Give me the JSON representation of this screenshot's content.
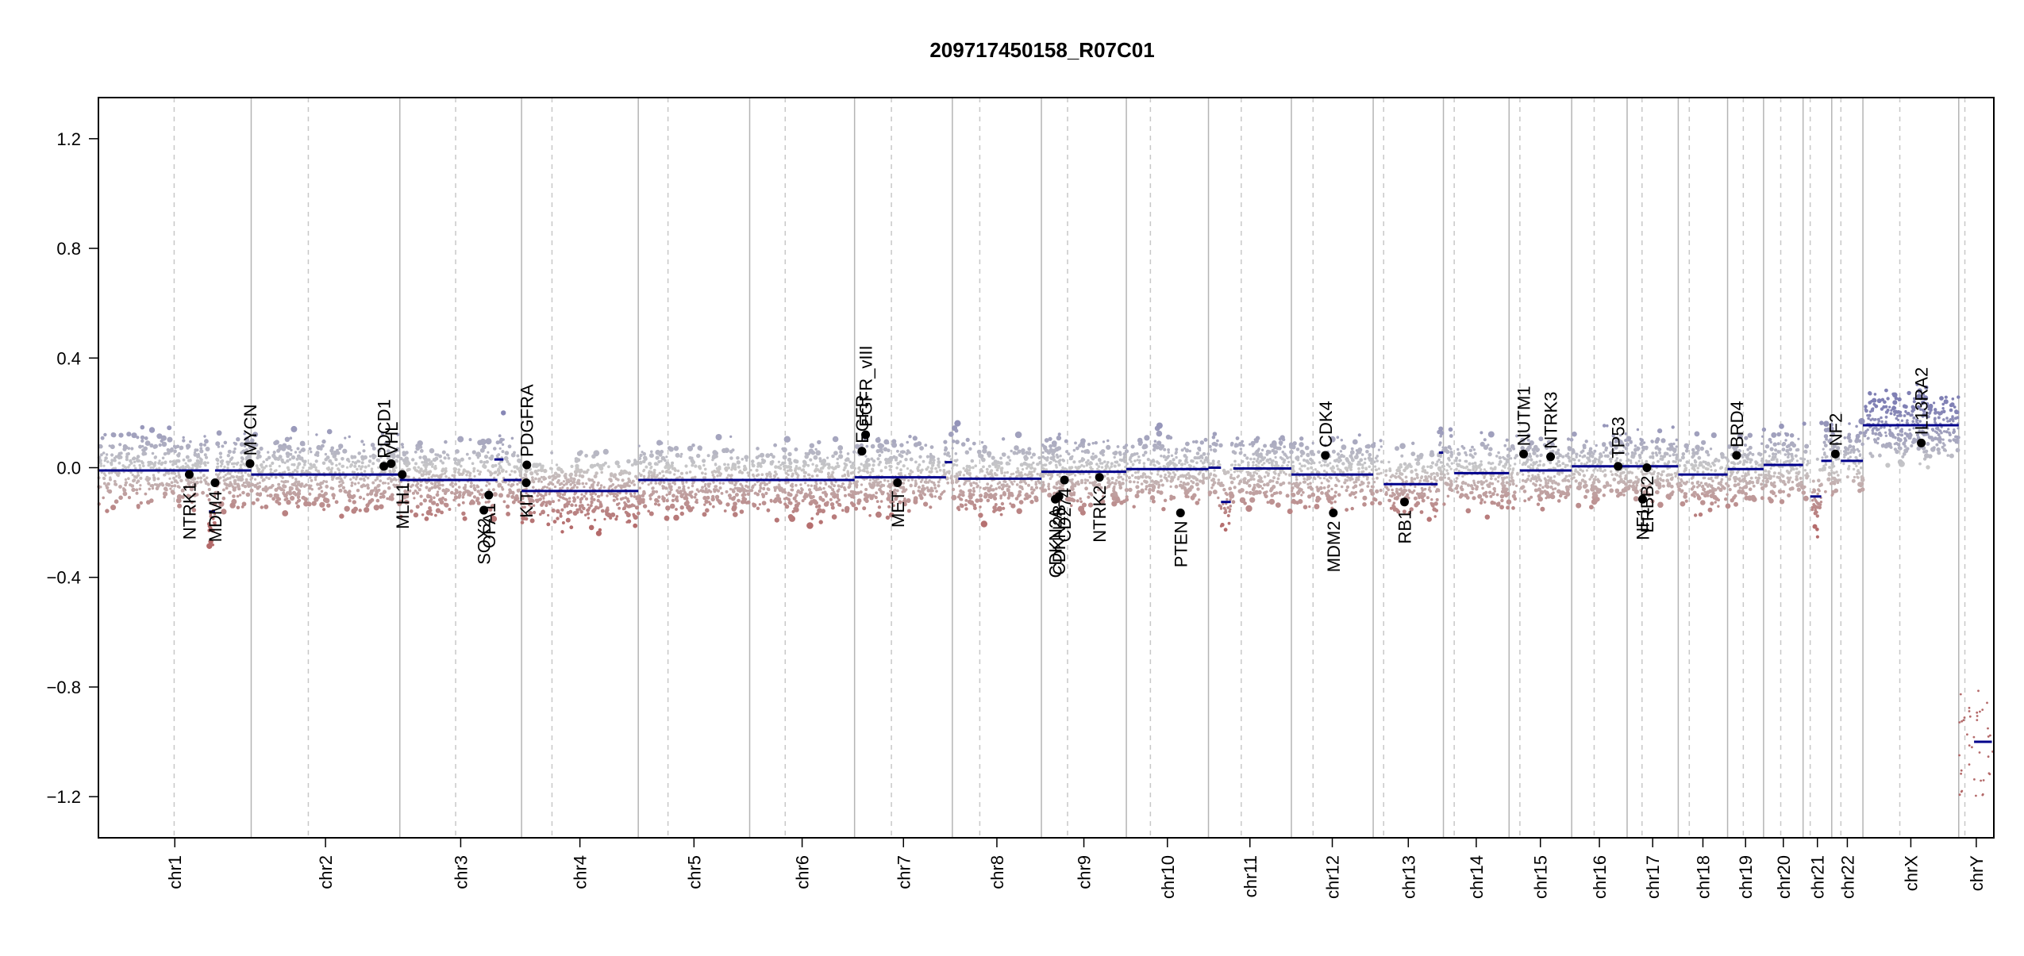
{
  "chart_data": {
    "type": "scatter",
    "title": "209717450158_R07C01",
    "xlabel": "",
    "ylabel": "",
    "ylim": [
      -1.35,
      1.35
    ],
    "yticks": [
      -1.2,
      -0.8,
      -0.4,
      0.0,
      0.4,
      0.8,
      1.2
    ],
    "ytick_labels": [
      "−1.2",
      "−0.8",
      "−0.4",
      "0.0",
      "0.4",
      "0.8",
      "1.2"
    ],
    "colors": {
      "gain": "#8080b4",
      "neutral": "#c8c8c8",
      "loss": "#b46a6a",
      "segment": "#00008b",
      "gene_point": "#000000",
      "chrom_border": "#b4b4b4",
      "centromere": "#c8c8c8",
      "frame": "#000000"
    },
    "chromosomes": [
      {
        "name": "chr1",
        "start": 0,
        "end": 248.9,
        "centromere": 123.4
      },
      {
        "name": "chr2",
        "start": 248.9,
        "end": 491.1,
        "centromere": 342.0
      },
      {
        "name": "chr3",
        "start": 491.1,
        "end": 689.4,
        "centromere": 582.0
      },
      {
        "name": "chr4",
        "start": 689.4,
        "end": 879.6,
        "centromere": 739.0
      },
      {
        "name": "chr5",
        "start": 879.6,
        "end": 1061.1,
        "centromere": 928.0
      },
      {
        "name": "chr6",
        "start": 1061.1,
        "end": 1232.0,
        "centromere": 1119.0
      },
      {
        "name": "chr7",
        "start": 1232.0,
        "end": 1391.3,
        "centromere": 1292.0
      },
      {
        "name": "chr8",
        "start": 1391.3,
        "end": 1536.4,
        "centromere": 1436.0
      },
      {
        "name": "chr9",
        "start": 1536.4,
        "end": 1674.8,
        "centromere": 1579.0
      },
      {
        "name": "chr10",
        "start": 1674.8,
        "end": 1808.6,
        "centromere": 1714.0
      },
      {
        "name": "chr11",
        "start": 1808.6,
        "end": 1943.7,
        "centromere": 1862.0
      },
      {
        "name": "chr12",
        "start": 1943.7,
        "end": 2077.0,
        "centromere": 1979.0
      },
      {
        "name": "chr13",
        "start": 2077.0,
        "end": 2191.4,
        "centromere": 2094.0
      },
      {
        "name": "chr14",
        "start": 2191.4,
        "end": 2298.4,
        "centromere": 2209.0
      },
      {
        "name": "chr15",
        "start": 2298.4,
        "end": 2400.4,
        "centromere": 2316.0
      },
      {
        "name": "chr16",
        "start": 2400.4,
        "end": 2490.7,
        "centromere": 2437.0
      },
      {
        "name": "chr17",
        "start": 2490.7,
        "end": 2574.0,
        "centromere": 2515.0
      },
      {
        "name": "chr18",
        "start": 2574.0,
        "end": 2654.4,
        "centromere": 2592.0
      },
      {
        "name": "chr19",
        "start": 2654.4,
        "end": 2713.0,
        "centromere": 2680.0
      },
      {
        "name": "chr20",
        "start": 2713.0,
        "end": 2777.4,
        "centromere": 2741.0
      },
      {
        "name": "chr21",
        "start": 2777.4,
        "end": 2824.1,
        "centromere": 2789.0
      },
      {
        "name": "chr22",
        "start": 2824.1,
        "end": 2874.9,
        "centromere": 2839.0
      },
      {
        "name": "chrX",
        "start": 2874.9,
        "end": 3031.0,
        "centromere": 2935.0
      },
      {
        "name": "chrY",
        "start": 3031.0,
        "end": 3088.2,
        "centromere": 3041.0
      }
    ],
    "segments": [
      {
        "x0": 0,
        "x1": 180,
        "y": -0.01
      },
      {
        "x0": 180,
        "x1": 190,
        "y": -0.16
      },
      {
        "x0": 190,
        "x1": 248.9,
        "y": -0.01
      },
      {
        "x0": 248.9,
        "x1": 491.1,
        "y": -0.025
      },
      {
        "x0": 491.1,
        "x1": 650,
        "y": -0.045
      },
      {
        "x0": 645,
        "x1": 660,
        "y": 0.03
      },
      {
        "x0": 660,
        "x1": 689.4,
        "y": -0.045
      },
      {
        "x0": 689.4,
        "x1": 879.6,
        "y": -0.085
      },
      {
        "x0": 879.6,
        "x1": 1061.1,
        "y": -0.045
      },
      {
        "x0": 1061.1,
        "x1": 1232.0,
        "y": -0.045
      },
      {
        "x0": 1232.0,
        "x1": 1381.0,
        "y": -0.035
      },
      {
        "x0": 1379,
        "x1": 1391,
        "y": 0.02
      },
      {
        "x0": 1401.0,
        "x1": 1536.4,
        "y": -0.04
      },
      {
        "x0": 1536.4,
        "x1": 1674.8,
        "y": -0.015
      },
      {
        "x0": 1674.8,
        "x1": 1808.6,
        "y": -0.005
      },
      {
        "x0": 1808.6,
        "x1": 1829.0,
        "y": 0.0
      },
      {
        "x0": 1829.0,
        "x1": 1845.0,
        "y": -0.125
      },
      {
        "x0": 1849.0,
        "x1": 1943.7,
        "y": -0.003
      },
      {
        "x0": 1943.7,
        "x1": 2077.0,
        "y": -0.025
      },
      {
        "x0": 2094.0,
        "x1": 2182.0,
        "y": -0.06
      },
      {
        "x0": 2184.0,
        "x1": 2191.0,
        "y": 0.055
      },
      {
        "x0": 2209.0,
        "x1": 2298.4,
        "y": -0.02
      },
      {
        "x0": 2316.0,
        "x1": 2400.4,
        "y": -0.01
      },
      {
        "x0": 2400.4,
        "x1": 2574.0,
        "y": 0.005
      },
      {
        "x0": 2574.0,
        "x1": 2654.4,
        "y": -0.025
      },
      {
        "x0": 2654.4,
        "x1": 2713.0,
        "y": -0.005
      },
      {
        "x0": 2713.0,
        "x1": 2777.4,
        "y": 0.01
      },
      {
        "x0": 2789.0,
        "x1": 2807.0,
        "y": -0.105
      },
      {
        "x0": 2807.0,
        "x1": 2824.1,
        "y": 0.025
      },
      {
        "x0": 2839.0,
        "x1": 2874.9,
        "y": 0.025
      },
      {
        "x0": 2874.9,
        "x1": 3031.0,
        "y": 0.155
      },
      {
        "x0": 3056.0,
        "x1": 3085.0,
        "y": -1.0
      }
    ],
    "genes": [
      {
        "name": "NTRK1",
        "x": 148.0,
        "y": -0.025,
        "side": "below"
      },
      {
        "name": "MDM4",
        "x": 190.0,
        "y": -0.055,
        "side": "below"
      },
      {
        "name": "MYCN",
        "x": 247.0,
        "y": 0.015,
        "side": "above"
      },
      {
        "name": "PDCD1",
        "x": 465.0,
        "y": 0.005,
        "side": "above"
      },
      {
        "name": "VHL",
        "x": 477.0,
        "y": 0.015,
        "side": "above"
      },
      {
        "name": "MLH1",
        "x": 495.0,
        "y": -0.025,
        "side": "below"
      },
      {
        "name": "SOX2",
        "x": 628.0,
        "y": -0.155,
        "side": "below"
      },
      {
        "name": "OPA1",
        "x": 636.0,
        "y": -0.1,
        "side": "below"
      },
      {
        "name": "PDGFRA",
        "x": 698.0,
        "y": 0.01,
        "side": "above"
      },
      {
        "name": "KIT",
        "x": 697.0,
        "y": -0.055,
        "side": "below"
      },
      {
        "name": "EGFR",
        "x": 1244.0,
        "y": 0.06,
        "side": "above"
      },
      {
        "name": "EGFR_vIII",
        "x": 1250.0,
        "y": 0.12,
        "side": "above"
      },
      {
        "name": "MET",
        "x": 1302.0,
        "y": -0.055,
        "side": "below"
      },
      {
        "name": "CDKN2A",
        "x": 1559.0,
        "y": -0.115,
        "side": "below"
      },
      {
        "name": "CDKN2B",
        "x": 1565.0,
        "y": -0.105,
        "side": "below"
      },
      {
        "name": "CD274",
        "x": 1574.0,
        "y": -0.045,
        "side": "below"
      },
      {
        "name": "NTRK2",
        "x": 1631.0,
        "y": -0.035,
        "side": "below"
      },
      {
        "name": "PTEN",
        "x": 1763.0,
        "y": -0.165,
        "side": "below"
      },
      {
        "name": "CDK4",
        "x": 1999.0,
        "y": 0.045,
        "side": "above"
      },
      {
        "name": "MDM2",
        "x": 2012.0,
        "y": -0.165,
        "side": "below"
      },
      {
        "name": "RB1",
        "x": 2128.0,
        "y": -0.125,
        "side": "below"
      },
      {
        "name": "NUTM1",
        "x": 2322.0,
        "y": 0.05,
        "side": "above"
      },
      {
        "name": "NTRK3",
        "x": 2366.0,
        "y": 0.04,
        "side": "above"
      },
      {
        "name": "TP53",
        "x": 2476.0,
        "y": 0.005,
        "side": "above"
      },
      {
        "name": "NF1",
        "x": 2516.0,
        "y": -0.115,
        "side": "below"
      },
      {
        "name": "ERBB2",
        "x": 2523.0,
        "y": 0.0,
        "side": "below"
      },
      {
        "name": "BRD4",
        "x": 2669.0,
        "y": 0.045,
        "side": "above"
      },
      {
        "name": "NF2",
        "x": 2830.0,
        "y": 0.05,
        "side": "above"
      },
      {
        "name": "IL13RA2",
        "x": 2970.0,
        "y": 0.09,
        "side": "above"
      }
    ]
  }
}
